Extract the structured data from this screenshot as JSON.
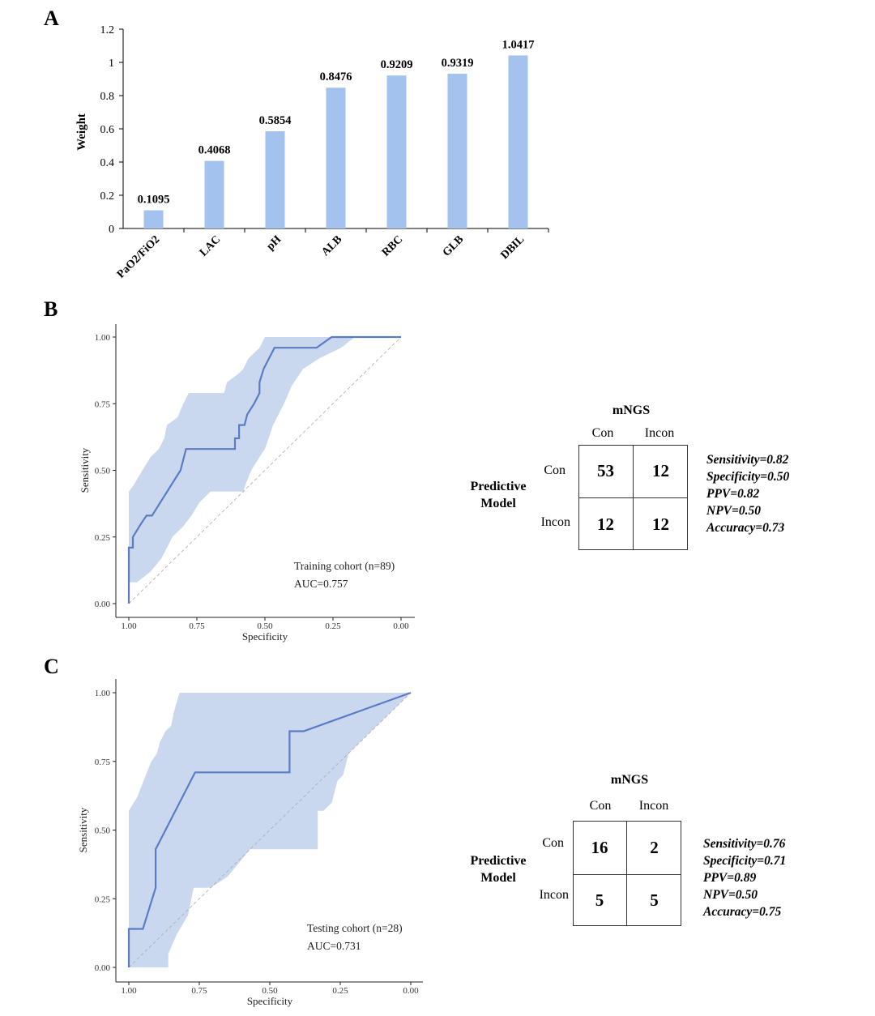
{
  "panels": {
    "a": "A",
    "b": "B",
    "c": "C"
  },
  "chart_data": [
    {
      "type": "bar",
      "ylabel": "Weight",
      "xlabel": "",
      "ylim": [
        0,
        1.2
      ],
      "yticks": [
        "0",
        "0.2",
        "0.4",
        "0.6",
        "0.8",
        "1",
        "1.2"
      ],
      "ytick_values": [
        0,
        0.2,
        0.4,
        0.6,
        0.8,
        1,
        1.2
      ],
      "categories": [
        "PaO2/FiO2",
        "LAC",
        "pH",
        "ALB",
        "RBC",
        "GLB",
        "DBIL"
      ],
      "values": [
        0.1095,
        0.4068,
        0.5854,
        0.8476,
        0.9209,
        0.9319,
        1.0417
      ],
      "labels": [
        "0.1095",
        "0.4068",
        "0.5854",
        "0.8476",
        "0.9209",
        "0.9319",
        "1.0417"
      ],
      "bar_color": "#a3c2ee"
    },
    {
      "type": "line",
      "xlabel": "Specificity",
      "ylabel": "Sensitivity",
      "xlim": [
        1.0,
        0.0
      ],
      "ylim": [
        0.0,
        1.0
      ],
      "xticks": [
        "1.00",
        "0.75",
        "0.50",
        "0.25",
        "0.00"
      ],
      "yticks": [
        "0.00",
        "0.25",
        "0.50",
        "0.75",
        "1.00"
      ],
      "annotation": [
        "Training cohort (n=89)",
        "AUC=0.757"
      ],
      "roc": [
        [
          1.0,
          0.0
        ],
        [
          1.0,
          0.21
        ],
        [
          0.985,
          0.21
        ],
        [
          0.985,
          0.25
        ],
        [
          0.955,
          0.3
        ],
        [
          0.935,
          0.33
        ],
        [
          0.915,
          0.33
        ],
        [
          0.81,
          0.5
        ],
        [
          0.79,
          0.58
        ],
        [
          0.61,
          0.58
        ],
        [
          0.61,
          0.62
        ],
        [
          0.595,
          0.62
        ],
        [
          0.595,
          0.67
        ],
        [
          0.575,
          0.67
        ],
        [
          0.565,
          0.71
        ],
        [
          0.54,
          0.75
        ],
        [
          0.52,
          0.79
        ],
        [
          0.52,
          0.83
        ],
        [
          0.505,
          0.88
        ],
        [
          0.465,
          0.96
        ],
        [
          0.31,
          0.96
        ],
        [
          0.255,
          1.0
        ],
        [
          0.0,
          1.0
        ]
      ],
      "ci_upper": [
        [
          1.0,
          0.42
        ],
        [
          0.985,
          0.44
        ],
        [
          0.95,
          0.5
        ],
        [
          0.92,
          0.55
        ],
        [
          0.89,
          0.58
        ],
        [
          0.87,
          0.62
        ],
        [
          0.86,
          0.67
        ],
        [
          0.82,
          0.7
        ],
        [
          0.8,
          0.75
        ],
        [
          0.78,
          0.79
        ],
        [
          0.65,
          0.79
        ],
        [
          0.64,
          0.83
        ],
        [
          0.6,
          0.86
        ],
        [
          0.58,
          0.88
        ],
        [
          0.56,
          0.92
        ],
        [
          0.54,
          0.94
        ],
        [
          0.52,
          0.96
        ],
        [
          0.5,
          1.0
        ],
        [
          0.0,
          1.0
        ]
      ],
      "ci_lower": [
        [
          0.0,
          1.0
        ],
        [
          0.17,
          1.0
        ],
        [
          0.22,
          0.96
        ],
        [
          0.3,
          0.92
        ],
        [
          0.36,
          0.88
        ],
        [
          0.4,
          0.82
        ],
        [
          0.43,
          0.75
        ],
        [
          0.47,
          0.67
        ],
        [
          0.5,
          0.58
        ],
        [
          0.52,
          0.55
        ],
        [
          0.55,
          0.5
        ],
        [
          0.57,
          0.45
        ],
        [
          0.58,
          0.42
        ],
        [
          0.7,
          0.42
        ],
        [
          0.74,
          0.38
        ],
        [
          0.77,
          0.33
        ],
        [
          0.8,
          0.29
        ],
        [
          0.84,
          0.25
        ],
        [
          0.88,
          0.17
        ],
        [
          0.92,
          0.12
        ],
        [
          0.97,
          0.08
        ],
        [
          1.0,
          0.08
        ]
      ],
      "line_color": "#5b7cc4",
      "band_color": "#cad8ef"
    },
    {
      "type": "line",
      "xlabel": "Specificity",
      "ylabel": "Sensitivity",
      "xlim": [
        1.0,
        0.0
      ],
      "ylim": [
        0.0,
        1.0
      ],
      "xticks": [
        "1.00",
        "0.75",
        "0.50",
        "0.25",
        "0.00"
      ],
      "yticks": [
        "0.00",
        "0.25",
        "0.50",
        "0.75",
        "1.00"
      ],
      "annotation": [
        "Testing cohort (n=28)",
        "AUC=0.731"
      ],
      "roc": [
        [
          1.0,
          0.0
        ],
        [
          1.0,
          0.14
        ],
        [
          0.95,
          0.14
        ],
        [
          0.905,
          0.29
        ],
        [
          0.905,
          0.43
        ],
        [
          0.765,
          0.71
        ],
        [
          0.43,
          0.71
        ],
        [
          0.43,
          0.86
        ],
        [
          0.38,
          0.86
        ],
        [
          0.0,
          1.0
        ]
      ],
      "ci_upper": [
        [
          1.0,
          0.57
        ],
        [
          0.97,
          0.62
        ],
        [
          0.94,
          0.7
        ],
        [
          0.92,
          0.75
        ],
        [
          0.9,
          0.78
        ],
        [
          0.89,
          0.82
        ],
        [
          0.87,
          0.86
        ],
        [
          0.85,
          0.88
        ],
        [
          0.84,
          0.93
        ],
        [
          0.82,
          1.0
        ],
        [
          0.0,
          1.0
        ]
      ],
      "ci_lower": [
        [
          0.0,
          1.0
        ],
        [
          0.22,
          0.78
        ],
        [
          0.24,
          0.7
        ],
        [
          0.26,
          0.68
        ],
        [
          0.28,
          0.6
        ],
        [
          0.31,
          0.57
        ],
        [
          0.33,
          0.57
        ],
        [
          0.33,
          0.43
        ],
        [
          0.57,
          0.43
        ],
        [
          0.65,
          0.33
        ],
        [
          0.71,
          0.29
        ],
        [
          0.77,
          0.29
        ],
        [
          0.79,
          0.19
        ],
        [
          0.83,
          0.12
        ],
        [
          0.86,
          0.05
        ],
        [
          0.86,
          0.0
        ],
        [
          1.0,
          0.0
        ]
      ],
      "line_color": "#5b7cc4",
      "band_color": "#cad8ef"
    }
  ],
  "matrices": [
    {
      "title": "mNGS",
      "col_labels": [
        "Con",
        "Incon"
      ],
      "row_labels": [
        "Con",
        "Incon"
      ],
      "model_line1": "Predictive",
      "model_line2": "Model",
      "cells": [
        "53",
        "12",
        "12",
        "12"
      ],
      "metrics": [
        "Sensitivity=0.82",
        "Specificity=0.50",
        "PPV=0.82",
        "NPV=0.50",
        "Accuracy=0.73"
      ]
    },
    {
      "title": "mNGS",
      "col_labels": [
        "Con",
        "Incon"
      ],
      "row_labels": [
        "Con",
        "Incon"
      ],
      "model_line1": "Predictive",
      "model_line2": "Model",
      "cells": [
        "16",
        "2",
        "5",
        "5"
      ],
      "metrics": [
        "Sensitivity=0.76",
        "Specificity=0.71",
        "PPV=0.89",
        "NPV=0.50",
        "Accuracy=0.75"
      ]
    }
  ]
}
